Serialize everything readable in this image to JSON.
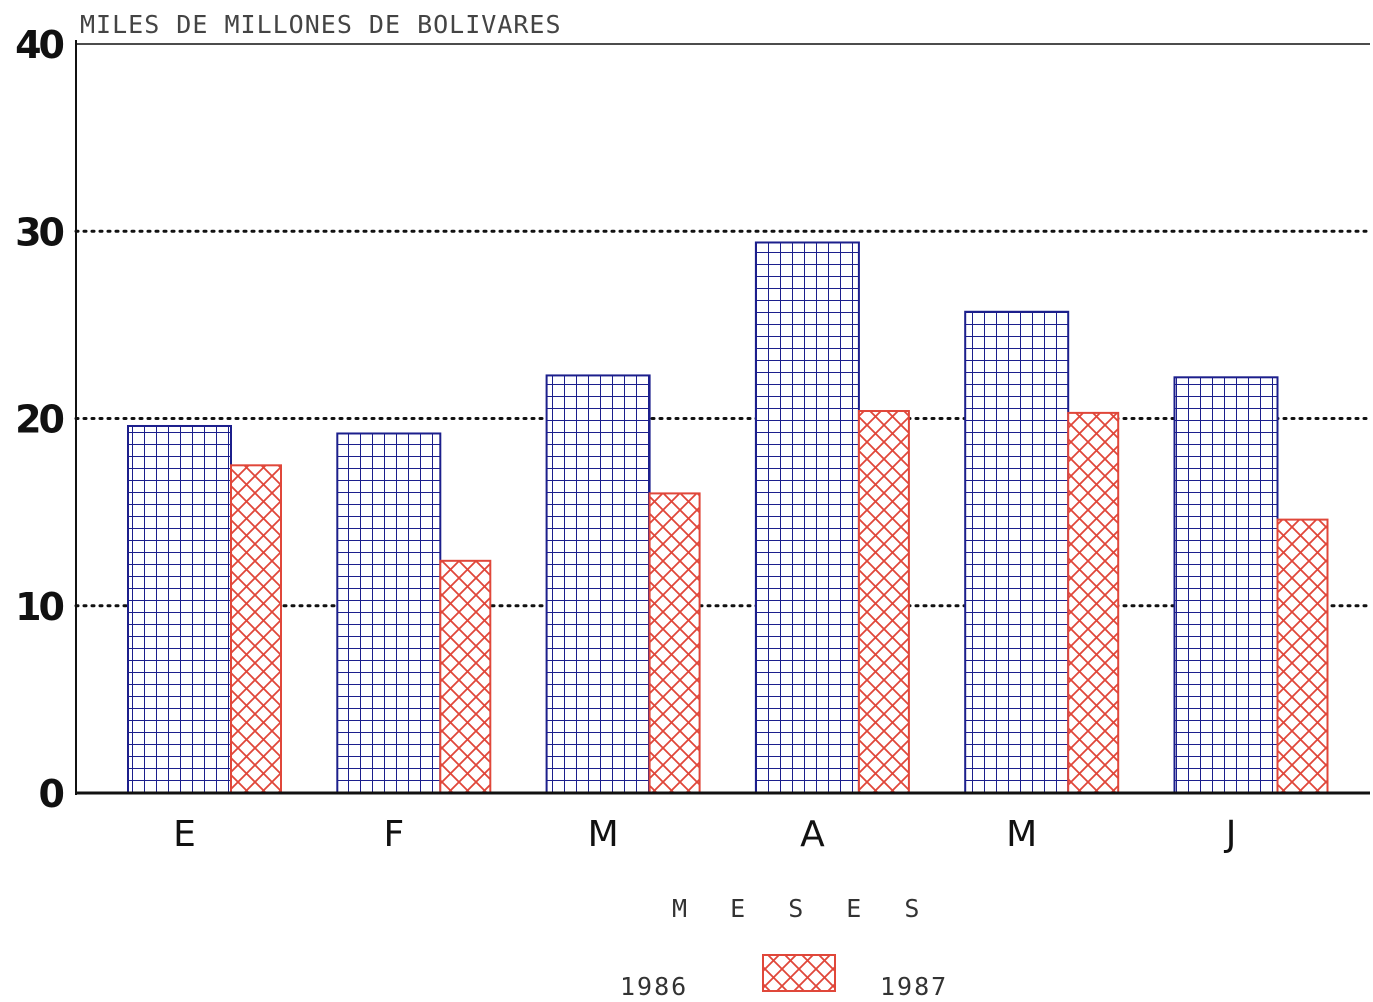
{
  "chart_data": {
    "type": "bar",
    "ylabel": "MILES DE MILLONES DE BOLIVARES",
    "xlabel": "M E S E S",
    "categories": [
      "E",
      "F",
      "M",
      "A",
      "M",
      "J"
    ],
    "ylim": [
      0,
      40
    ],
    "yticks": [
      "0",
      "10",
      "20",
      "30",
      "40"
    ],
    "grid": "dotted horizontal at 10, 20, 30",
    "legend_position": "bottom-center",
    "series": [
      {
        "name": "1986",
        "values": [
          19.6,
          19.2,
          22.3,
          29.4,
          25.7,
          22.2
        ],
        "color": "#1c1f8c",
        "pattern": "grid"
      },
      {
        "name": "1987",
        "values": [
          17.5,
          12.4,
          16.0,
          20.4,
          20.3,
          14.6
        ],
        "color": "#e0473a",
        "pattern": "crosshatch"
      }
    ]
  }
}
